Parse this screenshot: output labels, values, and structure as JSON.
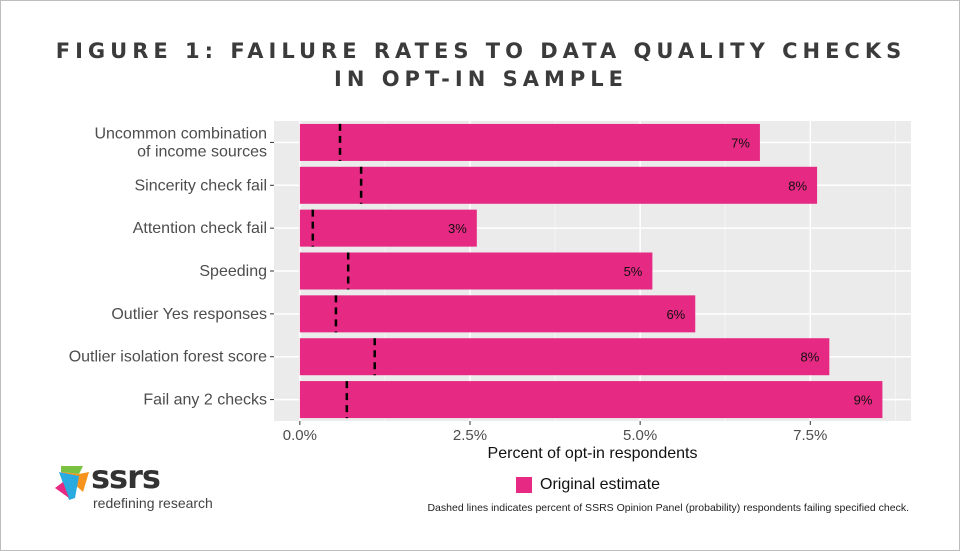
{
  "title_lines": [
    "FIGURE 1: FAILURE RATES TO DATA QUALITY CHECKS",
    "IN OPT-IN SAMPLE"
  ],
  "chart_data": {
    "type": "bar",
    "orientation": "horizontal",
    "categories": [
      "Uncommon combination\nof income sources",
      "Sincerity check fail",
      "Attention check fail",
      "Speeding",
      "Outlier Yes responses",
      "Outlier isolation forest score",
      "Fail any 2 checks"
    ],
    "series": [
      {
        "name": "Original estimate",
        "values": [
          6.76,
          7.6,
          2.6,
          5.18,
          5.81,
          7.78,
          8.56
        ],
        "data_labels": [
          "7%",
          "8%",
          "3%",
          "5%",
          "6%",
          "8%",
          "9%"
        ],
        "color": "#e62982"
      },
      {
        "name": "SSRS Opinion Panel (probability)",
        "style": "dashed-line",
        "values": [
          0.59,
          0.9,
          0.19,
          0.71,
          0.53,
          1.1,
          0.69
        ],
        "color": "#000000"
      }
    ],
    "xlabel": "Percent of opt-in respondents",
    "ylabel": "",
    "xticks": [
      0,
      2.5,
      5,
      7.5
    ],
    "xtick_labels": [
      "0.0%",
      "2.5%",
      "5.0%",
      "7.5%"
    ],
    "xlim": [
      -0.38,
      8.98
    ],
    "grid": true,
    "legend": {
      "position": "bottom",
      "entries": [
        "Original estimate"
      ]
    },
    "annotation": "Dashed lines indicates percent of SSRS Opinion Panel (probability) respondents failing specified check."
  },
  "logo": {
    "brand": "ssrs",
    "tagline": "redefining research"
  }
}
